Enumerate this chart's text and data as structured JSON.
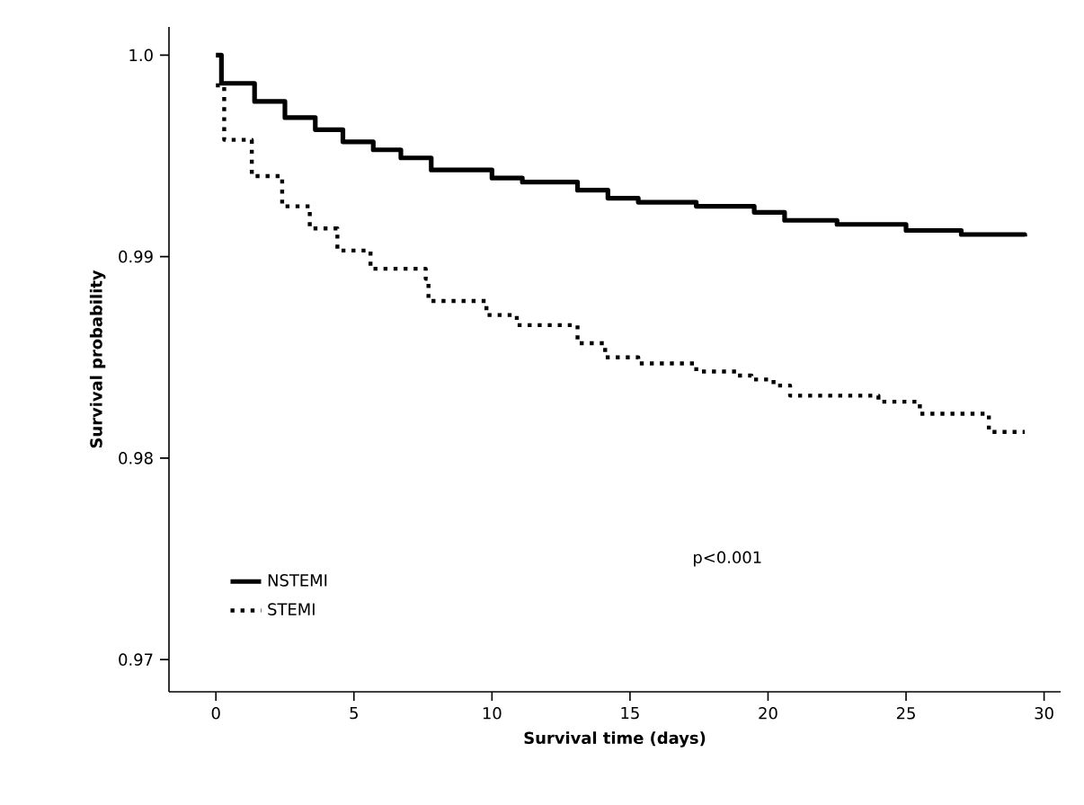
{
  "chart_data": {
    "type": "step",
    "xlabel": "Survival time (days)",
    "ylabel": "Survival probability",
    "xlim": [
      -1.7,
      30.6
    ],
    "ylim": [
      0.9684,
      1.0014
    ],
    "xticks": [
      0,
      5,
      10,
      15,
      20,
      25,
      30
    ],
    "yticks": [
      0.97,
      0.98,
      0.99,
      {
        "value": 1.0,
        "label": "1.0"
      }
    ],
    "legend": "bottom left",
    "grid": false,
    "annotations": [
      "p<0.001"
    ],
    "series": [
      {
        "name": "NSTEMI",
        "color": "#000000",
        "line_style": "solid",
        "x": [
          0,
          0.2,
          1.4,
          2.5,
          3.6,
          4.6,
          5.7,
          6.7,
          7.8,
          10.0,
          11.1,
          13.1,
          14.2,
          15.3,
          17.4,
          19.5,
          20.6,
          22.5,
          25,
          27,
          29.3
        ],
        "values": [
          1.0,
          0.9986,
          0.9977,
          0.9969,
          0.9963,
          0.9957,
          0.9953,
          0.9949,
          0.9943,
          0.9939,
          0.9937,
          0.9933,
          0.9929,
          0.9927,
          0.9925,
          0.9922,
          0.9918,
          0.9916,
          0.9913,
          0.9911,
          0.991
        ]
      },
      {
        "name": "STEMI",
        "color": "#000000",
        "line_style": "dotted",
        "x": [
          0,
          0.3,
          1.3,
          2.4,
          3.4,
          4.4,
          5.6,
          7.6,
          7.7,
          9.8,
          10.9,
          13.1,
          14.1,
          15.3,
          17.4,
          18.9,
          19.4,
          20.2,
          20.8,
          24,
          25.5,
          28,
          29.3
        ],
        "values": [
          0.9985,
          0.9958,
          0.994,
          0.9925,
          0.9914,
          0.9903,
          0.9894,
          0.9889,
          0.9878,
          0.9871,
          0.9866,
          0.9857,
          0.985,
          0.9847,
          0.9843,
          0.9841,
          0.9839,
          0.9836,
          0.9831,
          0.9828,
          0.9822,
          0.9813,
          0.9813
        ]
      }
    ]
  }
}
